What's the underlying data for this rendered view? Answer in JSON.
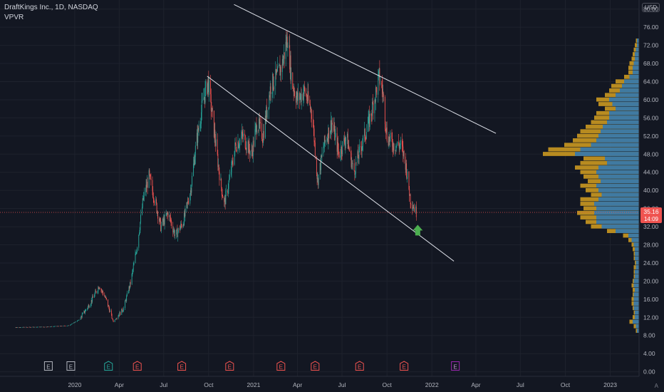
{
  "header": {
    "symbol": "DraftKings Inc., 1D, NASDAQ",
    "indicator": "VPVR",
    "currency": "USD",
    "auto": "A"
  },
  "price_tag": {
    "value": "35.16",
    "countdown": "14:09"
  },
  "colors": {
    "background": "#131722",
    "grid": "#1e222d",
    "up": "#26a69a",
    "down": "#ef5350",
    "vp_up": "#2a77b8",
    "vp_down": "#d6a020",
    "trendline": "#e0e3eb",
    "arrow": "#4caf50",
    "axis_text": "#b2b5be"
  },
  "chart_data": {
    "type": "candlestick",
    "y_axis": {
      "ylim": [
        -1,
        82
      ],
      "ticks": [
        0,
        4,
        8,
        12,
        16,
        20,
        24,
        28,
        32,
        36,
        40,
        44,
        48,
        52,
        56,
        60,
        64,
        68,
        72,
        76,
        80
      ],
      "tick_labels": [
        "0.00",
        "4.00",
        "8.00",
        "12.00",
        "16.00",
        "20.00",
        "24.00",
        "28.00",
        "32.00",
        "36.00",
        "40.00",
        "44.00",
        "48.00",
        "52.00",
        "56.00",
        "60.00",
        "64.00",
        "68.00",
        "72.00",
        "76.00",
        "80.00"
      ]
    },
    "x_axis": {
      "range": [
        "2019-08-01",
        "2023-03-01"
      ],
      "ticks": [
        {
          "date": "2020-01-01",
          "label": "2020"
        },
        {
          "date": "2020-04-01",
          "label": "Apr"
        },
        {
          "date": "2020-07-01",
          "label": "Jul"
        },
        {
          "date": "2020-10-01",
          "label": "Oct"
        },
        {
          "date": "2021-01-01",
          "label": "2021"
        },
        {
          "date": "2021-04-01",
          "label": "Apr"
        },
        {
          "date": "2021-07-01",
          "label": "Jul"
        },
        {
          "date": "2021-10-01",
          "label": "Oct"
        },
        {
          "date": "2022-01-01",
          "label": "2022"
        },
        {
          "date": "2022-04-01",
          "label": "Apr"
        },
        {
          "date": "2022-07-01",
          "label": "Jul"
        },
        {
          "date": "2022-10-01",
          "label": "Oct"
        },
        {
          "date": "2023-01-01",
          "label": "2023"
        }
      ]
    },
    "price_path": [
      [
        "2019-09-01",
        9.8
      ],
      [
        "2019-11-01",
        9.9
      ],
      [
        "2019-12-20",
        10.2
      ],
      [
        "2020-01-10",
        11.5
      ],
      [
        "2020-02-01",
        15.0
      ],
      [
        "2020-02-20",
        19.0
      ],
      [
        "2020-03-05",
        16.0
      ],
      [
        "2020-03-20",
        11.0
      ],
      [
        "2020-04-10",
        14.0
      ],
      [
        "2020-04-25",
        20.0
      ],
      [
        "2020-05-08",
        28.0
      ],
      [
        "2020-05-20",
        38.0
      ],
      [
        "2020-06-01",
        43.0
      ],
      [
        "2020-06-15",
        37.0
      ],
      [
        "2020-06-25",
        32.0
      ],
      [
        "2020-07-10",
        35.0
      ],
      [
        "2020-07-25",
        30.0
      ],
      [
        "2020-08-10",
        33.0
      ],
      [
        "2020-08-25",
        40.0
      ],
      [
        "2020-09-05",
        50.0
      ],
      [
        "2020-09-20",
        60.0
      ],
      [
        "2020-09-30",
        64.0
      ],
      [
        "2020-10-10",
        55.0
      ],
      [
        "2020-10-25",
        42.0
      ],
      [
        "2020-11-02",
        37.0
      ],
      [
        "2020-11-12",
        42.0
      ],
      [
        "2020-11-25",
        50.0
      ],
      [
        "2020-12-10",
        52.0
      ],
      [
        "2020-12-28",
        48.0
      ],
      [
        "2021-01-08",
        55.0
      ],
      [
        "2021-01-20",
        52.0
      ],
      [
        "2021-02-05",
        63.0
      ],
      [
        "2021-02-18",
        65.0
      ],
      [
        "2021-03-01",
        68.0
      ],
      [
        "2021-03-12",
        74.0
      ],
      [
        "2021-03-20",
        64.0
      ],
      [
        "2021-04-01",
        60.0
      ],
      [
        "2021-04-15",
        62.0
      ],
      [
        "2021-05-01",
        57.0
      ],
      [
        "2021-05-12",
        42.0
      ],
      [
        "2021-05-25",
        50.0
      ],
      [
        "2021-06-10",
        55.0
      ],
      [
        "2021-06-25",
        48.0
      ],
      [
        "2021-07-10",
        52.0
      ],
      [
        "2021-07-25",
        44.0
      ],
      [
        "2021-08-10",
        50.0
      ],
      [
        "2021-08-25",
        55.0
      ],
      [
        "2021-09-05",
        60.0
      ],
      [
        "2021-09-15",
        65.0
      ],
      [
        "2021-09-22",
        62.0
      ],
      [
        "2021-10-01",
        52.0
      ],
      [
        "2021-10-15",
        50.0
      ],
      [
        "2021-10-30",
        50.0
      ],
      [
        "2021-11-08",
        46.0
      ],
      [
        "2021-11-18",
        38.0
      ],
      [
        "2021-11-30",
        35.2
      ]
    ],
    "trendlines": [
      {
        "from": [
          "2020-11-22",
          81.0
        ],
        "to": [
          "2022-05-12",
          52.6
        ]
      },
      {
        "from": [
          "2020-09-28",
          65.2
        ],
        "to": [
          "2022-02-15",
          24.4
        ]
      }
    ],
    "earnings_markers": [
      {
        "date": "2019-11-08",
        "label": "E",
        "style": "gray"
      },
      {
        "date": "2019-12-24",
        "label": "E",
        "style": "gray"
      },
      {
        "date": "2020-03-10",
        "label": "E",
        "style": "up"
      },
      {
        "date": "2020-05-08",
        "label": "E",
        "style": "down"
      },
      {
        "date": "2020-08-07",
        "label": "E",
        "style": "down"
      },
      {
        "date": "2020-11-13",
        "label": "E",
        "style": "down"
      },
      {
        "date": "2021-02-26",
        "label": "E",
        "style": "down"
      },
      {
        "date": "2021-05-07",
        "label": "E",
        "style": "down"
      },
      {
        "date": "2021-08-06",
        "label": "E",
        "style": "down"
      },
      {
        "date": "2021-11-05",
        "label": "E",
        "style": "down"
      },
      {
        "date": "2022-02-18",
        "label": "E",
        "style": "future"
      }
    ],
    "signal_arrow": {
      "date": "2021-12-03",
      "value": 31.0,
      "direction": "up"
    },
    "last_price": 35.16,
    "volume_profile": [
      [
        9,
        0.03,
        0.02
      ],
      [
        10,
        0.05,
        0.03
      ],
      [
        11,
        0.09,
        0.06
      ],
      [
        12,
        0.06,
        0.04
      ],
      [
        13,
        0.05,
        0.04
      ],
      [
        14,
        0.06,
        0.05
      ],
      [
        15,
        0.07,
        0.05
      ],
      [
        16,
        0.07,
        0.05
      ],
      [
        17,
        0.06,
        0.05
      ],
      [
        18,
        0.06,
        0.04
      ],
      [
        19,
        0.07,
        0.05
      ],
      [
        20,
        0.06,
        0.05
      ],
      [
        21,
        0.05,
        0.04
      ],
      [
        22,
        0.05,
        0.04
      ],
      [
        23,
        0.05,
        0.03
      ],
      [
        24,
        0.04,
        0.03
      ],
      [
        25,
        0.05,
        0.04
      ],
      [
        26,
        0.05,
        0.04
      ],
      [
        27,
        0.06,
        0.04
      ],
      [
        28,
        0.07,
        0.05
      ],
      [
        29,
        0.1,
        0.07
      ],
      [
        30,
        0.15,
        0.1
      ],
      [
        31,
        0.3,
        0.22
      ],
      [
        32,
        0.45,
        0.35
      ],
      [
        33,
        0.5,
        0.4
      ],
      [
        34,
        0.55,
        0.4
      ],
      [
        35,
        0.58,
        0.42
      ],
      [
        36,
        0.52,
        0.4
      ],
      [
        37,
        0.55,
        0.42
      ],
      [
        38,
        0.55,
        0.38
      ],
      [
        39,
        0.45,
        0.35
      ],
      [
        40,
        0.5,
        0.38
      ],
      [
        41,
        0.55,
        0.4
      ],
      [
        42,
        0.48,
        0.36
      ],
      [
        43,
        0.52,
        0.38
      ],
      [
        44,
        0.55,
        0.4
      ],
      [
        45,
        0.6,
        0.38
      ],
      [
        46,
        0.55,
        0.3
      ],
      [
        47,
        0.52,
        0.32
      ],
      [
        48,
        0.9,
        0.6
      ],
      [
        49,
        0.85,
        0.55
      ],
      [
        50,
        0.7,
        0.45
      ],
      [
        51,
        0.62,
        0.4
      ],
      [
        52,
        0.58,
        0.38
      ],
      [
        53,
        0.55,
        0.36
      ],
      [
        54,
        0.5,
        0.34
      ],
      [
        55,
        0.45,
        0.3
      ],
      [
        56,
        0.42,
        0.28
      ],
      [
        57,
        0.4,
        0.28
      ],
      [
        58,
        0.32,
        0.22
      ],
      [
        59,
        0.38,
        0.25
      ],
      [
        60,
        0.4,
        0.28
      ],
      [
        61,
        0.32,
        0.22
      ],
      [
        62,
        0.28,
        0.18
      ],
      [
        63,
        0.26,
        0.16
      ],
      [
        64,
        0.22,
        0.14
      ],
      [
        65,
        0.14,
        0.09
      ],
      [
        66,
        0.1,
        0.06
      ],
      [
        67,
        0.1,
        0.06
      ],
      [
        68,
        0.09,
        0.05
      ],
      [
        69,
        0.07,
        0.04
      ],
      [
        70,
        0.06,
        0.04
      ],
      [
        71,
        0.05,
        0.03
      ],
      [
        72,
        0.04,
        0.02
      ],
      [
        73,
        0.03,
        0.02
      ]
    ]
  }
}
